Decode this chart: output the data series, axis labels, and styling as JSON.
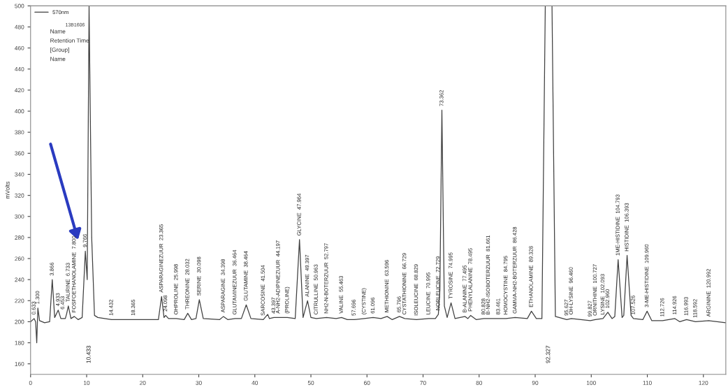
{
  "chart_data": {
    "type": "line",
    "ylabel": "mVolts",
    "xlim": [
      0,
      124
    ],
    "ylim": [
      150,
      500
    ],
    "xticks": [
      0,
      10,
      20,
      30,
      40,
      50,
      60,
      70,
      80,
      90,
      100,
      110,
      120
    ],
    "yticks": [
      160,
      180,
      200,
      220,
      240,
      260,
      280,
      300,
      320,
      340,
      360,
      380,
      400,
      420,
      440,
      460,
      480,
      500
    ],
    "legend": "top left",
    "grid": false,
    "marker": "none",
    "line_style": "solid",
    "series": [
      {
        "name": "570nm",
        "color": "#404040",
        "x": [
          0,
          0.633,
          0.9,
          1.1,
          1.3,
          1.6,
          2.5,
          3.4,
          3.866,
          4.3,
          4.933,
          5.4,
          6.2,
          6.453,
          6.733,
          7.2,
          7.8,
          8.5,
          9.2,
          9.766,
          10.1,
          10.433,
          10.9,
          11.4,
          12,
          14.432,
          18.365,
          22.8,
          23.365,
          23.8,
          24.098,
          24.6,
          25.998,
          27.4,
          28.032,
          28.7,
          29.5,
          30.098,
          30.8,
          33.7,
          34.398,
          35.2,
          36.464,
          37.6,
          38.464,
          39.3,
          41.504,
          42.3,
          42.6,
          43.397,
          44.197,
          45.8,
          47.2,
          47.964,
          48.6,
          49.397,
          50.0,
          50.963,
          52.797,
          54.5,
          55.463,
          56.5,
          57.696,
          59.5,
          61.096,
          62.5,
          63.596,
          64.5,
          65.796,
          66.729,
          68.829,
          70.995,
          72.2,
          72.729,
          73.0,
          73.362,
          73.8,
          74.3,
          74.995,
          75.7,
          77.495,
          78.0,
          78.495,
          79.5,
          80.828,
          81.661,
          83.461,
          84.795,
          86.428,
          88.6,
          89.328,
          90.2,
          91.2,
          91.8,
          92.327,
          93.0,
          93.6,
          95.627,
          96.46,
          99.827,
          100.727,
          102.093,
          102.96,
          103.7,
          104.2,
          104.793,
          105.5,
          105.8,
          106.393,
          107.1,
          107.526,
          109.2,
          109.96,
          110.8,
          112.726,
          114.926,
          115.8,
          116.993,
          118.592,
          120.992,
          124
        ],
        "values": [
          200,
          203,
          200,
          180,
          213,
          201,
          199,
          200,
          240,
          204,
          211,
          203,
          203,
          208,
          215,
          203,
          205,
          202,
          204,
          267,
          240,
          500,
          280,
          206,
          204,
          202,
          202,
          202,
          224,
          204,
          206,
          203,
          203,
          202,
          208,
          202,
          203,
          221,
          203,
          202,
          205,
          202,
          203,
          203,
          216,
          203,
          202,
          207,
          203,
          204,
          204,
          204,
          203,
          278,
          204,
          220,
          204,
          203,
          204,
          203,
          204,
          202,
          202,
          203,
          204,
          203,
          205,
          202,
          205,
          203,
          202,
          203,
          203,
          207,
          230,
          401,
          215,
          204,
          218,
          203,
          205,
          203,
          206,
          202,
          203,
          203,
          203,
          203,
          204,
          203,
          210,
          203,
          203,
          500,
          500,
          500,
          205,
          202,
          203,
          201,
          202,
          203,
          209,
          203,
          205,
          259,
          204,
          206,
          263,
          206,
          203,
          202,
          210,
          201,
          201,
          203,
          200,
          202,
          200,
          201,
          199
        ]
      }
    ],
    "annotations": [
      "13B1606",
      "Name",
      "Retention Time",
      "[Group]",
      "Name",
      {
        "text": "0.633",
        "x": 0.633,
        "y": 203
      },
      {
        "text": "1.300",
        "x": 1.3,
        "y": 213
      },
      {
        "text": "3.866",
        "x": 3.866,
        "y": 240
      },
      {
        "text": "4.933",
        "x": 4.933,
        "y": 211
      },
      {
        "text": "6.453",
        "x": 6.453,
        "y": 208
      },
      {
        "text": "TAURINE  6.733",
        "x": 6.733,
        "y": 215
      },
      {
        "text": "FOSFOETHANOLAMINE  7.800",
        "x": 7.8,
        "y": 205
      },
      {
        "text": "9.766",
        "x": 9.766,
        "y": 267
      },
      "10.433",
      {
        "text": "14.432",
        "x": 14.432,
        "y": 202
      },
      {
        "text": "18.365",
        "x": 18.365,
        "y": 202
      },
      {
        "text": "ASPARAGINEZUUR  23.365",
        "x": 23.365,
        "y": 224
      },
      {
        "text": "24.098",
        "x": 24.098,
        "y": 206
      },
      {
        "text": "OHPROLINE  25.998",
        "x": 25.998,
        "y": 203
      },
      {
        "text": "THREONINE  28.032",
        "x": 28.032,
        "y": 208
      },
      {
        "text": "SERINE  30.098",
        "x": 30.098,
        "y": 221
      },
      {
        "text": "ASPARAGINE  34.398",
        "x": 34.398,
        "y": 205
      },
      {
        "text": "GLUTAMINEZUUR  36.464",
        "x": 36.464,
        "y": 203
      },
      {
        "text": "GLUTAMINE  38.464",
        "x": 38.464,
        "y": 216
      },
      {
        "text": "SARCOSINE  41.504",
        "x": 41.504,
        "y": 202
      },
      {
        "text": "43.397",
        "x": 43.397,
        "y": 204
      },
      {
        "text": "A-NH2-ADIPINEZUUR  44.197",
        "x": 44.197,
        "y": 204
      },
      {
        "text": "(PROLINE)",
        "x": 45.8,
        "y": 204
      },
      {
        "text": "GLYCINE  47.964",
        "x": 47.964,
        "y": 278
      },
      {
        "text": "ALANINE  49.397",
        "x": 49.397,
        "y": 220
      },
      {
        "text": "CITRULLINE  50.963",
        "x": 50.963,
        "y": 203
      },
      {
        "text": "NH2-N-BOTERZUUR  52.797",
        "x": 52.797,
        "y": 204
      },
      {
        "text": "VALINE  55.463",
        "x": 55.463,
        "y": 204
      },
      {
        "text": "57.696",
        "x": 57.696,
        "y": 202
      },
      {
        "text": "(CYSTINE)",
        "x": 59.5,
        "y": 203
      },
      {
        "text": "61.096",
        "x": 61.096,
        "y": 204
      },
      {
        "text": "METHIONINE  63.596",
        "x": 63.596,
        "y": 205
      },
      {
        "text": "65.796",
        "x": 65.796,
        "y": 205
      },
      {
        "text": "CYSTATHIONINE  66.729",
        "x": 66.729,
        "y": 203
      },
      {
        "text": "ISOLEUCINE  68.829",
        "x": 68.829,
        "y": 202
      },
      {
        "text": "LEUCINE  70.995",
        "x": 70.995,
        "y": 203
      },
      {
        "text": "NORLEUCINE  72.729",
        "x": 72.729,
        "y": 207
      },
      {
        "text": "73.362",
        "x": 73.362,
        "y": 401
      },
      {
        "text": "TYROSINE  74.995",
        "x": 74.995,
        "y": 218
      },
      {
        "text": "B-ALANINE  77.495",
        "x": 77.495,
        "y": 205
      },
      {
        "text": "PHENYLALANINE  78.495",
        "x": 78.495,
        "y": 206
      },
      {
        "text": "80.828",
        "x": 80.828,
        "y": 203
      },
      {
        "text": "B-NH2-ISOBOTERZUUR  81.661",
        "x": 81.661,
        "y": 203
      },
      {
        "text": "83.461",
        "x": 83.461,
        "y": 203
      },
      {
        "text": "HOMOCYSTINE  84.795",
        "x": 84.795,
        "y": 203
      },
      {
        "text": "GAMMA-NH2-BOTERZUUR  86.428",
        "x": 86.428,
        "y": 204
      },
      {
        "text": "ETHANOLAMINE  89.328",
        "x": 89.328,
        "y": 210
      },
      "92.327",
      {
        "text": "95.627",
        "x": 95.627,
        "y": 202
      },
      {
        "text": "OH-LYSINE  96.460",
        "x": 96.46,
        "y": 203
      },
      {
        "text": "99.827",
        "x": 99.827,
        "y": 201
      },
      {
        "text": "ORNITHINE  100.727",
        "x": 100.727,
        "y": 202
      },
      {
        "text": "LYSINE  102.093",
        "x": 102.093,
        "y": 203
      },
      {
        "text": "102.960",
        "x": 102.96,
        "y": 209
      },
      {
        "text": "1ME-HISTIDINE  104.793",
        "x": 104.793,
        "y": 259
      },
      {
        "text": "HISTIDINE  106.393",
        "x": 106.393,
        "y": 263
      },
      {
        "text": "107.526",
        "x": 107.526,
        "y": 203
      },
      {
        "text": "3-ME-HISTIDINE  109.960",
        "x": 109.96,
        "y": 210
      },
      {
        "text": "112.726",
        "x": 112.726,
        "y": 201
      },
      {
        "text": "114.926",
        "x": 114.926,
        "y": 203
      },
      {
        "text": "116.993",
        "x": 116.993,
        "y": 202
      },
      {
        "text": "118.592",
        "x": 118.592,
        "y": 200
      },
      {
        "text": "ARGININE  120.992",
        "x": 120.992,
        "y": 201
      }
    ]
  }
}
